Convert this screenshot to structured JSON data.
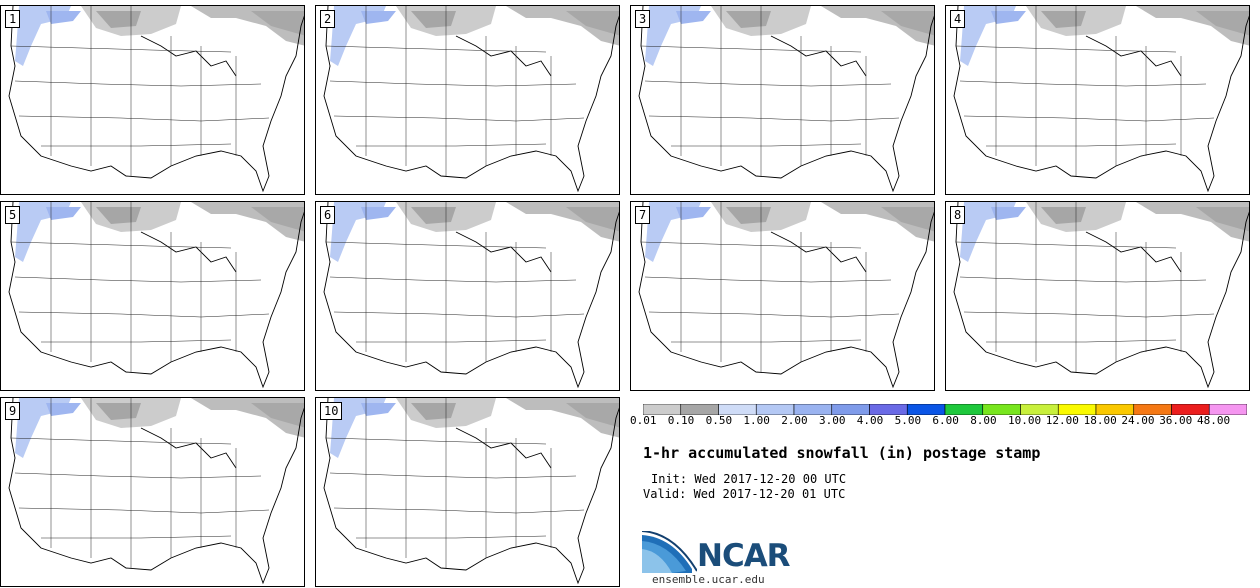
{
  "panels": [
    {
      "label": "1"
    },
    {
      "label": "2"
    },
    {
      "label": "3"
    },
    {
      "label": "4"
    },
    {
      "label": "5"
    },
    {
      "label": "6"
    },
    {
      "label": "7"
    },
    {
      "label": "8"
    },
    {
      "label": "9"
    },
    {
      "label": "10"
    }
  ],
  "colorbar": {
    "colors": [
      "#cccccc",
      "#a6a6a6",
      "#cfdcf7",
      "#b4c8f4",
      "#9ab3f0",
      "#7f9bea",
      "#6a6ae6",
      "#0a55e6",
      "#1ec83c",
      "#78e61e",
      "#c8f03c",
      "#fafa00",
      "#fac800",
      "#f57814",
      "#eb1e1e",
      "#f596f0"
    ],
    "labels": [
      "0.01",
      "0.10",
      "0.50",
      "1.00",
      "2.00",
      "3.00",
      "4.00",
      "5.00",
      "6.00",
      "8.00",
      "10.00",
      "12.00",
      "18.00",
      "24.00",
      "36.00",
      "48.00"
    ]
  },
  "title": "1-hr accumulated snowfall (in) postage stamp",
  "init": "Init: Wed 2017-12-20 00 UTC",
  "valid": "Valid: Wed 2017-12-20 01 UTC",
  "logo": {
    "text": "NCAR",
    "url_text": "ensemble.ucar.edu"
  }
}
